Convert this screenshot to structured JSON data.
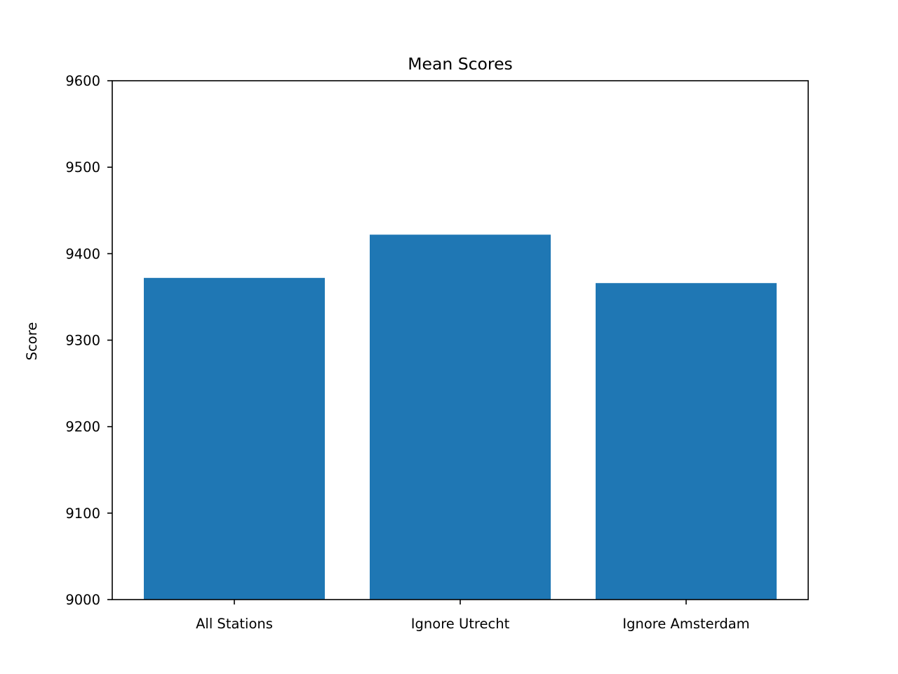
{
  "chart_data": {
    "type": "bar",
    "title": "Mean Scores",
    "xlabel": "",
    "ylabel": "Score",
    "categories": [
      "All Stations",
      "Ignore Utrecht",
      "Ignore Amsterdam"
    ],
    "values": [
      9372,
      9422,
      9366
    ],
    "ylim": [
      9000,
      9600
    ],
    "yticks": [
      9000,
      9100,
      9200,
      9300,
      9400,
      9500,
      9600
    ],
    "ytick_labels": [
      "9000",
      "9100",
      "9200",
      "9300",
      "9400",
      "9500",
      "9600"
    ],
    "grid": false,
    "bar_color": "#1f77b4"
  }
}
